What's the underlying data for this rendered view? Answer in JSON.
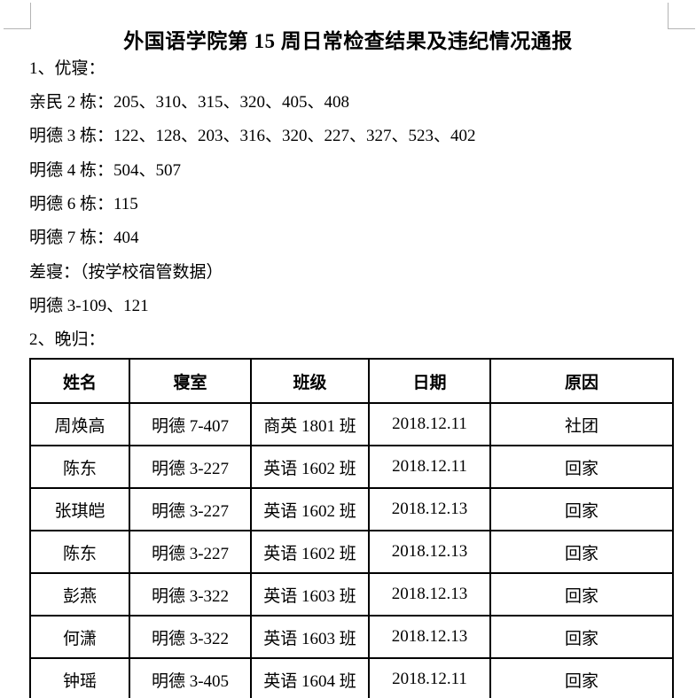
{
  "page": {
    "title": "外国语学院第 15 周日常检查结果及违纪情况通报"
  },
  "intro_lines": [
    "1、优寝：",
    "亲民 2 栋：205、310、315、320、405、408",
    "明德 3 栋：122、128、203、316、320、227、327、523、402",
    "明德 4 栋：504、507",
    "明德 6 栋：115",
    "明德 7 栋：404",
    "差寝：（按学校宿管数据）",
    "明德 3-109、121",
    "2、晚归："
  ],
  "table": {
    "headers": [
      "姓名",
      "寝室",
      "班级",
      "日期",
      "原因"
    ],
    "rows": [
      [
        "周焕高",
        "明德 7-407",
        "商英 1801 班",
        "2018.12.11",
        "社团"
      ],
      [
        "陈东",
        "明德 3-227",
        "英语 1602 班",
        "2018.12.11",
        "回家"
      ],
      [
        "张琪皑",
        "明德 3-227",
        "英语 1602 班",
        "2018.12.13",
        "回家"
      ],
      [
        "陈东",
        "明德 3-227",
        "英语 1602 班",
        "2018.12.13",
        "回家"
      ],
      [
        "彭燕",
        "明德 3-322",
        "英语 1603 班",
        "2018.12.13",
        "回家"
      ],
      [
        "何潇",
        "明德 3-322",
        "英语 1603 班",
        "2018.12.13",
        "回家"
      ],
      [
        "钟瑶",
        "明德 3-405",
        "英语 1604 班",
        "2018.12.11",
        "回家"
      ]
    ]
  },
  "colors": {
    "text": "#000000",
    "table_border": "#000000",
    "crop_mark": "#b4b4b4",
    "page_background": "#ffffff"
  }
}
